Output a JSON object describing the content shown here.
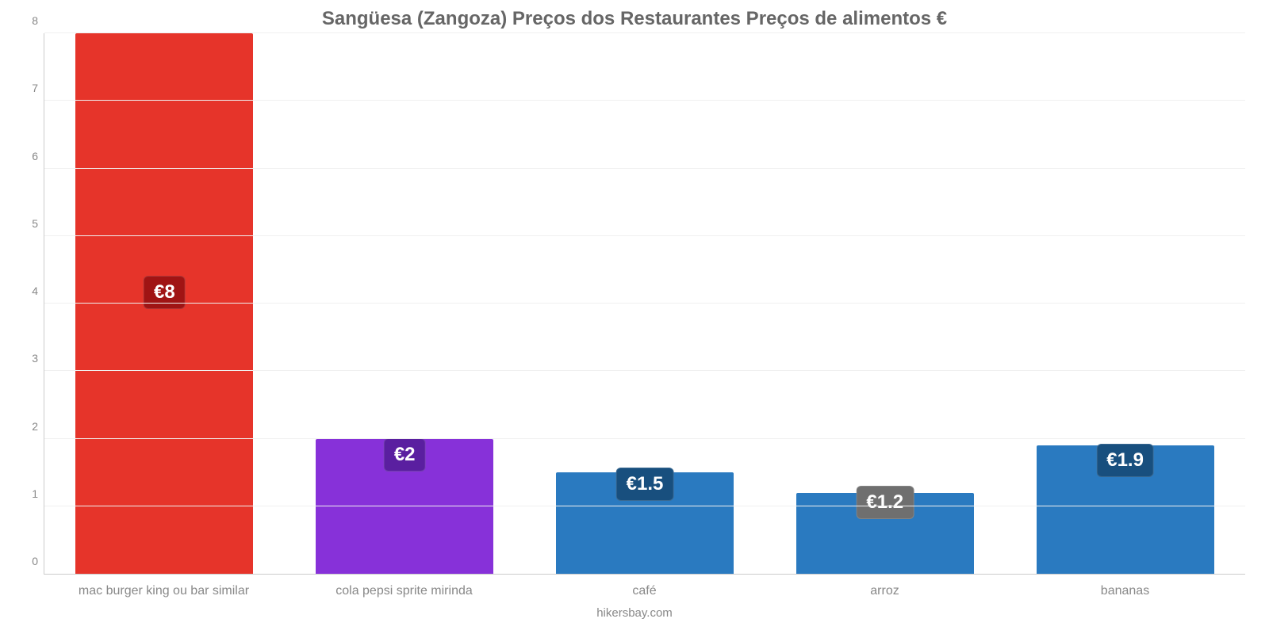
{
  "chart": {
    "type": "bar",
    "title": "Sangüesa (Zangoza) Preços dos Restaurantes Preços de alimentos €",
    "title_fontsize": 24,
    "title_color": "#666666",
    "background_color": "#ffffff",
    "grid_color": "#f0f0f0",
    "axis_color": "#cccccc",
    "tick_label_color": "#888888",
    "tick_label_fontsize": 14,
    "x_label_fontsize": 16,
    "ylim": [
      0,
      8
    ],
    "ytick_step": 1,
    "yticks": [
      0,
      1,
      2,
      3,
      4,
      5,
      6,
      7,
      8
    ],
    "bar_width_pct": 74,
    "categories": [
      "mac burger king ou bar similar",
      "cola pepsi sprite mirinda",
      "café",
      "arroz",
      "bananas"
    ],
    "values": [
      8,
      2,
      1.5,
      1.2,
      1.9
    ],
    "value_labels": [
      "€8",
      "€2",
      "€1.5",
      "€1.2",
      "€1.9"
    ],
    "bar_colors": [
      "#e6342a",
      "#8731d9",
      "#2a7ac0",
      "#2a7ac0",
      "#2a7ac0"
    ],
    "badge_colors": [
      "#a01414",
      "#5a1fa0",
      "#184f7e",
      "#6f6f6f",
      "#184f7e"
    ],
    "badge_fontsize": 24,
    "credit": "hikersbay.com",
    "credit_color": "#888888"
  }
}
